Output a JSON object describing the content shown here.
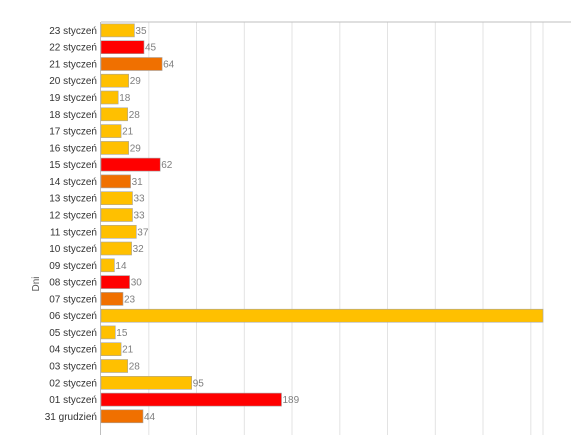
{
  "chart_data": {
    "type": "bar",
    "orientation": "horizontal",
    "title": "",
    "xlabel": "",
    "ylabel": "Dni",
    "xlim": [
      0,
      300
    ],
    "grid": true,
    "legend": "none",
    "categories": [
      "23 styczeń",
      "22 styczeń",
      "21 styczeń",
      "20 styczeń",
      "19 styczeń",
      "18 styczeń",
      "17 styczeń",
      "16 styczeń",
      "15 styczeń",
      "14 styczeń",
      "13 styczeń",
      "12 styczeń",
      "11 styczeń",
      "10 styczeń",
      "09 styczeń",
      "08 styczeń",
      "07 styczeń",
      "06 styczeń",
      "05 styczeń",
      "04 styczeń",
      "03 styczeń",
      "02 styczeń",
      "01 styczeń",
      "31 grudzień"
    ],
    "values": [
      35,
      45,
      64,
      29,
      18,
      28,
      21,
      29,
      62,
      31,
      33,
      33,
      37,
      32,
      14,
      30,
      23,
      null,
      15,
      21,
      28,
      95,
      189,
      44
    ],
    "labels": [
      "35",
      "45",
      "64",
      "29",
      "18",
      "28",
      "21",
      "29",
      "62",
      "31",
      "33",
      "33",
      "37",
      "32",
      "14",
      "30",
      "23",
      "",
      "15",
      "21",
      "28",
      "95",
      "189",
      "44"
    ],
    "colors": [
      "#ffc000",
      "#ff0000",
      "#f07000",
      "#ffc000",
      "#ffc000",
      "#ffc000",
      "#ffc000",
      "#ffc000",
      "#ff0000",
      "#f07000",
      "#ffc000",
      "#ffc000",
      "#ffc000",
      "#ffc000",
      "#ffc000",
      "#ff0000",
      "#f07000",
      "#ffc000",
      "#ffc000",
      "#ffc000",
      "#ffc000",
      "#ffc000",
      "#ff0000",
      "#f07000"
    ],
    "clipped_beyond_axis": [
      "06 styczeń"
    ]
  }
}
